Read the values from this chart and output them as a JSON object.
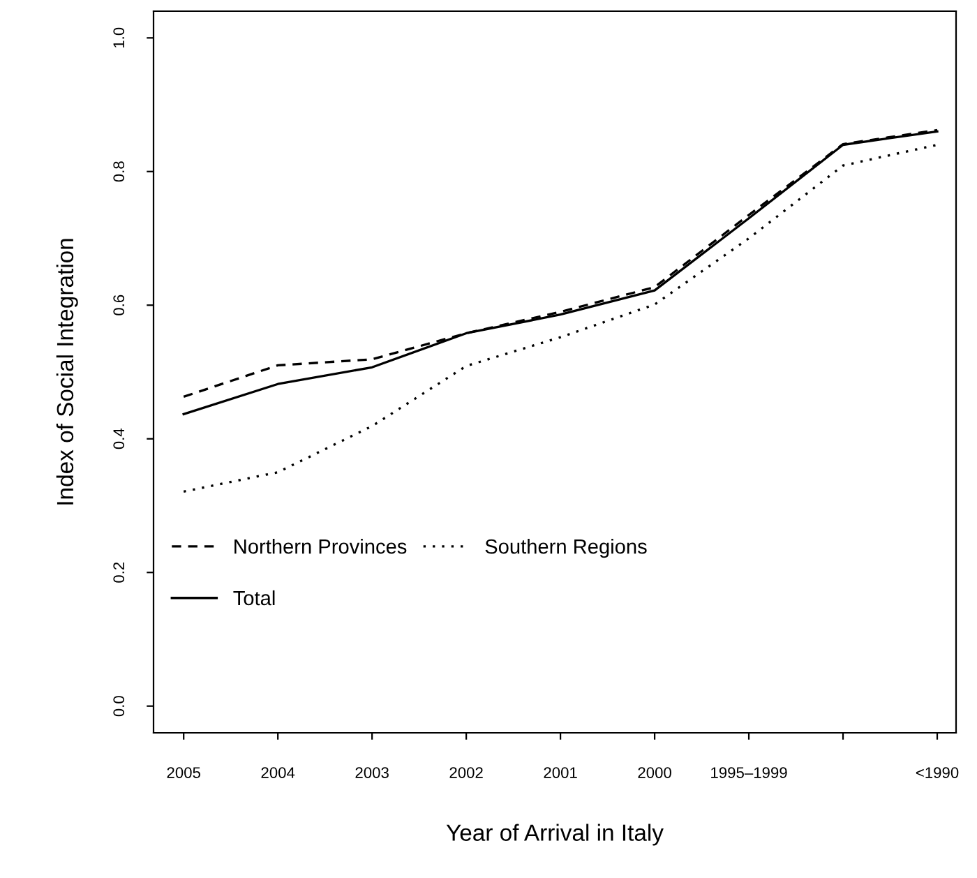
{
  "chart_data": {
    "type": "line",
    "xlabel": "Year of Arrival in Italy",
    "ylabel": "Index of Social Integration",
    "categories": [
      "2005",
      "2004",
      "2003",
      "2002",
      "2001",
      "2000",
      "1995–1999",
      null,
      "<1990"
    ],
    "series": [
      {
        "name": "Northern Provinces",
        "color": "#000000",
        "line_style": "dashed",
        "values": [
          0.463,
          0.51,
          0.519,
          0.558,
          0.59,
          0.627,
          0.735,
          0.841,
          0.862
        ]
      },
      {
        "name": "Southern Regions",
        "color": "#000000",
        "line_style": "dotted",
        "values": [
          0.321,
          0.35,
          0.419,
          0.509,
          0.552,
          0.601,
          0.7,
          0.809,
          0.84
        ]
      },
      {
        "name": "Total",
        "color": "#000000",
        "line_style": "solid",
        "values": [
          0.437,
          0.482,
          0.507,
          0.558,
          0.586,
          0.622,
          0.73,
          0.84,
          0.86
        ]
      }
    ],
    "ylim": [
      -0.04,
      1.04
    ],
    "yticks": [
      {
        "value": 0,
        "label": "0.0"
      },
      {
        "value": 0.2,
        "label": "0.2"
      },
      {
        "value": 0.4,
        "label": "0.4"
      },
      {
        "value": 0.6,
        "label": "0.6"
      },
      {
        "value": 0.8,
        "label": "0.8"
      },
      {
        "value": 1,
        "label": "1.0"
      }
    ],
    "grid": false,
    "legend": "left",
    "marker": "none"
  }
}
